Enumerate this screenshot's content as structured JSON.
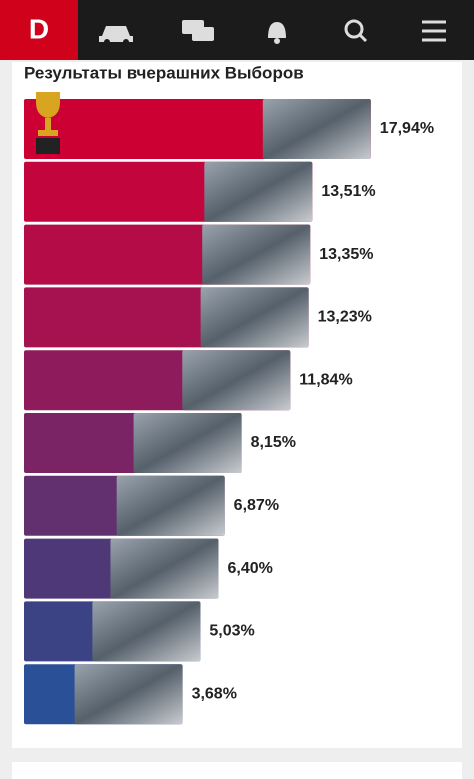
{
  "header": {
    "logo": "D"
  },
  "chart_data": {
    "type": "bar",
    "orientation": "horizontal",
    "title": "Результаты вчерашних Выборов",
    "values": [
      17.94,
      13.51,
      13.35,
      13.23,
      11.84,
      8.15,
      6.87,
      6.4,
      5.03,
      3.68
    ],
    "value_labels": [
      "17,94%",
      "13,51%",
      "13,35%",
      "13,23%",
      "11,84%",
      "8,15%",
      "6,87%",
      "6,40%",
      "5,03%",
      "3,68%"
    ],
    "colors": [
      "#cc0033",
      "#c2053d",
      "#b40c47",
      "#a5124f",
      "#8e1c5c",
      "#7a2466",
      "#63306f",
      "#4f3878",
      "#3b4384",
      "#2a5098"
    ]
  }
}
